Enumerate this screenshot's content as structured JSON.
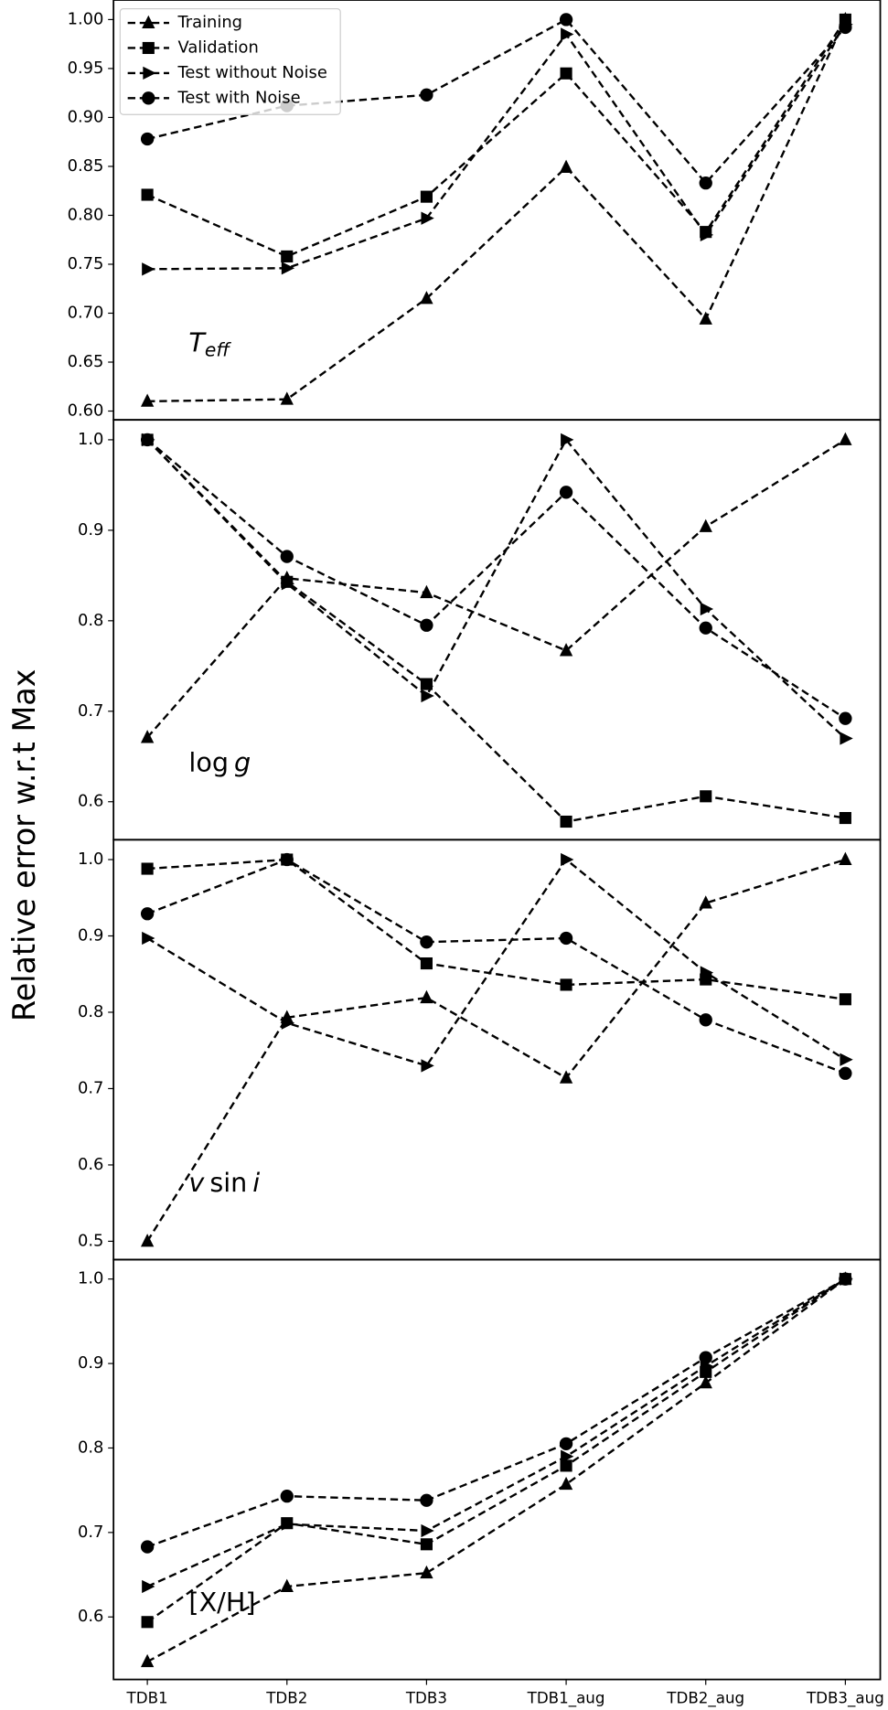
{
  "ylabel": "Relative error w.r.t Max",
  "chart_data": [
    {
      "type": "line",
      "annotation": [
        {
          "text": "T",
          "italic": true
        },
        {
          "text": "eff",
          "italic": true,
          "sub": true
        }
      ],
      "ylim": [
        0.591,
        1.02
      ],
      "yticks": [
        {
          "value": 0.6,
          "label": "0.60"
        },
        0.65,
        {
          "value": 0.7,
          "label": "0.70"
        },
        0.75,
        {
          "value": 0.8,
          "label": "0.80"
        },
        0.85,
        {
          "value": 0.9,
          "label": "0.90"
        },
        0.95,
        {
          "value": 1.0,
          "label": "1.00"
        }
      ],
      "legend": "upper left",
      "series": [
        {
          "name": "Training",
          "color": "#000000",
          "marker": "triangle-up",
          "values": [
            0.61,
            0.612,
            0.715,
            0.849,
            0.694,
            1.0
          ]
        },
        {
          "name": "Validation",
          "color": "#000000",
          "marker": "square",
          "values": [
            0.821,
            0.758,
            0.819,
            0.945,
            0.783,
            1.0
          ]
        },
        {
          "name": "Test without Noise",
          "color": "#000000",
          "marker": "triangle-right",
          "values": [
            0.745,
            0.746,
            0.797,
            0.985,
            0.78,
            0.995
          ]
        },
        {
          "name": "Test with Noise",
          "color": "#000000",
          "marker": "circle",
          "values": [
            0.878,
            0.912,
            0.923,
            1.0,
            0.833,
            0.992
          ]
        }
      ]
    },
    {
      "type": "line",
      "annotation": [
        {
          "text": "log"
        },
        {
          "text": "g",
          "italic": true
        }
      ],
      "ylim": [
        0.558,
        1.022
      ],
      "yticks": [
        0.6,
        0.7,
        0.8,
        0.9,
        {
          "value": 1.0,
          "label": "1.0"
        }
      ],
      "series": [
        {
          "color": "#000000",
          "marker": "triangle-up",
          "values": [
            0.671,
            0.847,
            0.831,
            0.767,
            0.904,
            1.0
          ]
        },
        {
          "color": "#000000",
          "marker": "square",
          "values": [
            1.0,
            0.843,
            0.73,
            0.578,
            0.606,
            0.582
          ]
        },
        {
          "color": "#000000",
          "marker": "triangle-right",
          "values": [
            1.0,
            0.841,
            0.717,
            1.0,
            0.813,
            0.67
          ]
        },
        {
          "color": "#000000",
          "marker": "circle",
          "values": [
            1.0,
            0.871,
            0.795,
            0.942,
            0.792,
            0.692
          ]
        }
      ]
    },
    {
      "type": "line",
      "annotation": [
        {
          "text": "v",
          "italic": true
        },
        {
          "text": "sin"
        },
        {
          "text": "i",
          "italic": true
        }
      ],
      "ylim": [
        0.476,
        1.026
      ],
      "yticks": [
        0.5,
        0.6,
        0.7,
        0.8,
        0.9,
        {
          "value": 1.0,
          "label": "1.0"
        }
      ],
      "series": [
        {
          "color": "#000000",
          "marker": "triangle-up",
          "values": [
            0.5,
            0.793,
            0.819,
            0.714,
            0.943,
            1.0
          ]
        },
        {
          "color": "#000000",
          "marker": "square",
          "values": [
            0.988,
            1.0,
            0.864,
            0.836,
            0.843,
            0.817
          ]
        },
        {
          "color": "#000000",
          "marker": "triangle-right",
          "values": [
            0.897,
            0.786,
            0.73,
            1.0,
            0.852,
            0.738
          ]
        },
        {
          "color": "#000000",
          "marker": "circle",
          "values": [
            0.929,
            1.0,
            0.892,
            0.897,
            0.79,
            0.72
          ]
        }
      ]
    },
    {
      "type": "line",
      "annotation": [
        {
          "text": "[X/H]"
        }
      ],
      "categories": [
        "TDB1",
        "TDB2",
        "TDB3",
        "TDB1_aug",
        "TDB2_aug",
        "TDB3_aug"
      ],
      "ylim": [
        0.526,
        1.023
      ],
      "yticks": [
        0.6,
        0.7,
        0.8,
        0.9,
        {
          "value": 1.0,
          "label": "1.0"
        }
      ],
      "series": [
        {
          "color": "#000000",
          "marker": "triangle-up",
          "values": [
            0.547,
            0.636,
            0.652,
            0.757,
            0.877,
            1.0
          ]
        },
        {
          "color": "#000000",
          "marker": "square",
          "values": [
            0.594,
            0.711,
            0.686,
            0.779,
            0.89,
            1.0
          ]
        },
        {
          "color": "#000000",
          "marker": "triangle-right",
          "values": [
            0.636,
            0.71,
            0.702,
            0.79,
            0.897,
            1.0
          ]
        },
        {
          "color": "#000000",
          "marker": "circle",
          "values": [
            0.683,
            0.743,
            0.738,
            0.805,
            0.907,
            1.0
          ]
        }
      ]
    }
  ]
}
